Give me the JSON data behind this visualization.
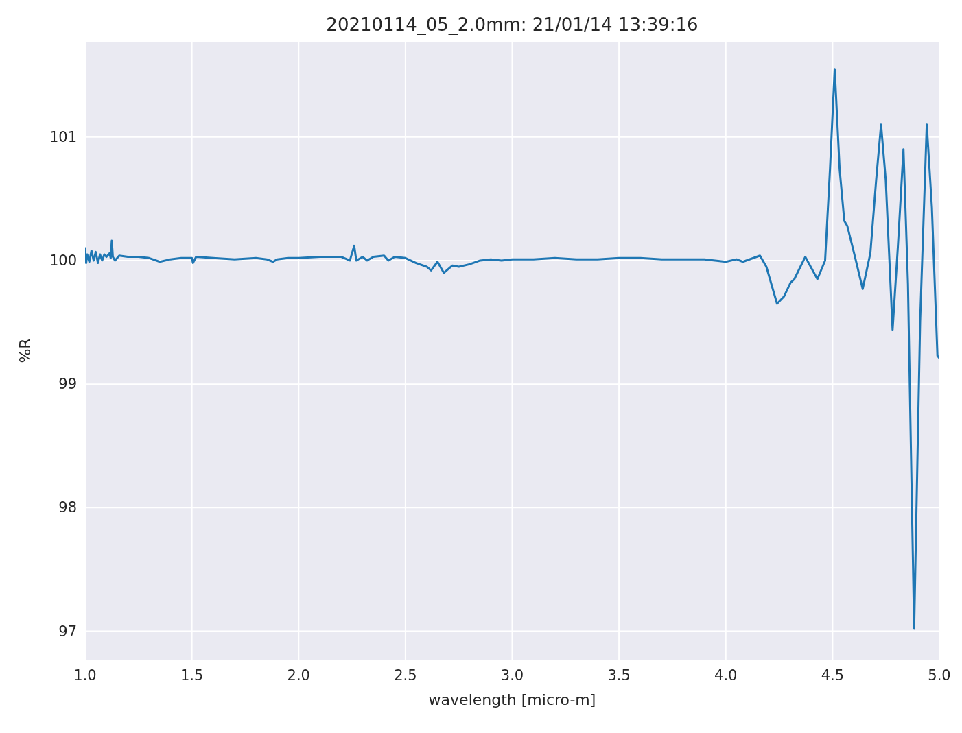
{
  "chart_data": {
    "type": "line",
    "title": "20210114_05_2.0mm:  21/01/14 13:39:16",
    "xlabel": "wavelength [micro-m]",
    "ylabel": "%R",
    "xlim": [
      1.0,
      5.0
    ],
    "xticks": [
      {
        "value": 1.0,
        "label": "1.0"
      },
      {
        "value": 1.5,
        "label": "1.5"
      },
      {
        "value": 2.0,
        "label": "2.0"
      },
      {
        "value": 2.5,
        "label": "2.5"
      },
      {
        "value": 3.0,
        "label": "3.0"
      },
      {
        "value": 3.5,
        "label": "3.5"
      },
      {
        "value": 4.0,
        "label": "4.0"
      },
      {
        "value": 4.5,
        "label": "4.5"
      },
      {
        "value": 5.0,
        "label": "5.0"
      }
    ],
    "ylim": [
      96.77,
      101.77
    ],
    "yticks": [
      97,
      98,
      99,
      100,
      101
    ],
    "grid": true,
    "line_style": "solid",
    "marker": "none",
    "series": [
      {
        "color": "#1f77b4",
        "x": [
          1.0,
          1.005,
          1.01,
          1.02,
          1.03,
          1.04,
          1.05,
          1.06,
          1.07,
          1.08,
          1.09,
          1.1,
          1.115,
          1.12,
          1.125,
          1.13,
          1.14,
          1.16,
          1.2,
          1.25,
          1.3,
          1.35,
          1.4,
          1.45,
          1.5,
          1.505,
          1.52,
          1.6,
          1.7,
          1.8,
          1.85,
          1.88,
          1.9,
          1.95,
          2.0,
          2.1,
          2.2,
          2.24,
          2.26,
          2.27,
          2.3,
          2.32,
          2.35,
          2.4,
          2.42,
          2.45,
          2.5,
          2.55,
          2.6,
          2.62,
          2.65,
          2.68,
          2.72,
          2.75,
          2.8,
          2.85,
          2.9,
          2.95,
          3.0,
          3.1,
          3.2,
          3.3,
          3.4,
          3.5,
          3.6,
          3.7,
          3.8,
          3.9,
          4.0,
          4.05,
          4.08,
          4.16,
          4.19,
          4.24,
          4.273,
          4.303,
          4.321,
          4.372,
          4.429,
          4.465,
          4.488,
          4.51,
          4.533,
          4.555,
          4.569,
          4.605,
          4.641,
          4.677,
          4.704,
          4.727,
          4.749,
          4.781,
          4.806,
          4.832,
          4.853,
          4.882,
          4.91,
          4.941,
          4.965,
          4.991,
          5.0
        ],
        "values": [
          100.1,
          99.98,
          100.05,
          99.99,
          100.08,
          100.0,
          100.07,
          99.98,
          100.05,
          100.0,
          100.05,
          100.03,
          100.06,
          100.02,
          100.16,
          100.03,
          100.0,
          100.04,
          100.03,
          100.03,
          100.02,
          99.99,
          100.01,
          100.02,
          100.02,
          99.98,
          100.03,
          100.02,
          100.01,
          100.02,
          100.01,
          99.99,
          100.01,
          100.02,
          100.02,
          100.03,
          100.03,
          100.0,
          100.12,
          100.0,
          100.03,
          100.0,
          100.03,
          100.04,
          100.0,
          100.03,
          100.02,
          99.98,
          99.95,
          99.92,
          99.99,
          99.9,
          99.96,
          99.95,
          99.97,
          100.0,
          100.01,
          100.0,
          100.01,
          100.01,
          100.02,
          100.01,
          100.01,
          100.02,
          100.02,
          100.01,
          100.01,
          100.01,
          99.99,
          100.01,
          99.99,
          100.04,
          99.95,
          99.65,
          99.71,
          99.82,
          99.85,
          100.03,
          99.85,
          100.0,
          100.74,
          101.55,
          100.74,
          100.32,
          100.28,
          100.03,
          99.77,
          100.06,
          100.65,
          101.1,
          100.65,
          99.44,
          100.12,
          100.9,
          99.81,
          97.02,
          99.51,
          101.1,
          100.43,
          99.23,
          99.21
        ]
      }
    ]
  }
}
